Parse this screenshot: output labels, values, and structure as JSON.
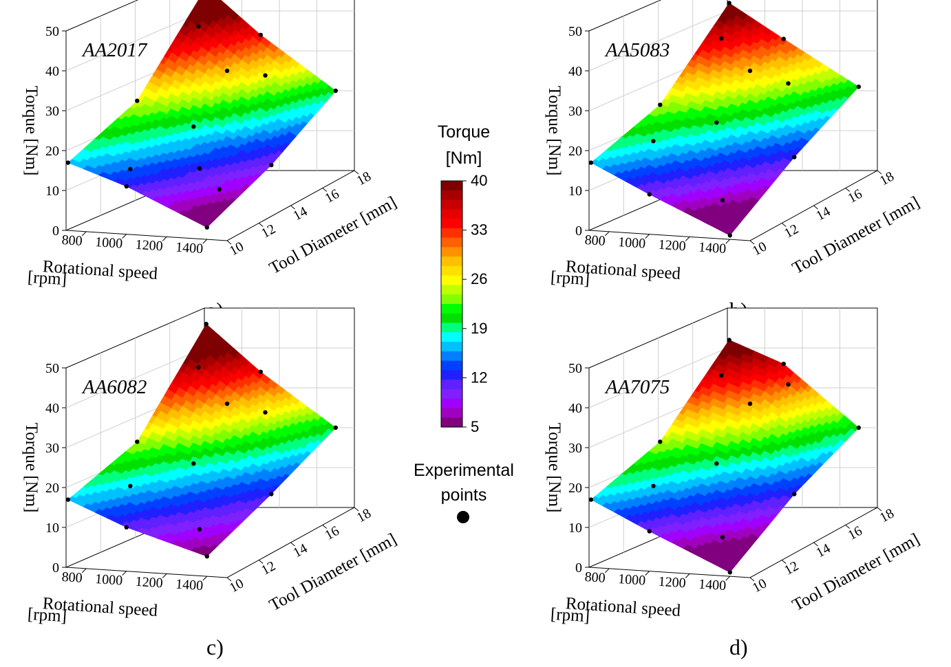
{
  "chart_data": [
    {
      "type": "surface3d",
      "panel": "a)",
      "title": "AA2017",
      "xlabel": [
        "Rotational speed",
        "[rpm]"
      ],
      "ylabel": "Tool Diameter [mm]",
      "zlabel": "Torque [Nm]",
      "xticks": [
        "800",
        "1000",
        "1200",
        "1400"
      ],
      "yticks": [
        "10",
        "12",
        "14",
        "16",
        "18"
      ],
      "zticks": [
        "0",
        "10",
        "20",
        "30",
        "40",
        "50"
      ],
      "xlim": [
        700,
        1500
      ],
      "ylim": [
        10,
        18
      ],
      "zlim": [
        0,
        50
      ],
      "rpm": [
        710,
        1000,
        1400
      ],
      "diameter": [
        10,
        14,
        18
      ],
      "torque": [
        [
          17,
          25,
          46
        ],
        [
          12,
          19,
          34
        ],
        [
          3,
          10,
          20
        ]
      ],
      "points": [
        [
          710,
          10,
          17
        ],
        [
          710,
          14,
          25
        ],
        [
          710,
          18,
          46
        ],
        [
          1000,
          10,
          12
        ],
        [
          1000,
          14,
          19
        ],
        [
          1000,
          18,
          34
        ],
        [
          1400,
          10,
          3
        ],
        [
          1400,
          14,
          10
        ],
        [
          1400,
          18,
          20
        ],
        [
          850,
          12,
          12
        ],
        [
          850,
          16,
          40
        ],
        [
          1200,
          16,
          28
        ],
        [
          1200,
          12,
          13
        ],
        [
          1000,
          16,
          29
        ],
        [
          1300,
          12,
          8
        ]
      ]
    },
    {
      "type": "surface3d",
      "panel": "b)",
      "title": "AA5083",
      "xlabel": [
        "Rotational speed",
        "[rpm]"
      ],
      "ylabel": "Tool Diameter [mm]",
      "zlabel": "Torque [Nm]",
      "xticks": [
        "800",
        "1000",
        "1200",
        "1400"
      ],
      "yticks": [
        "10",
        "12",
        "14",
        "16",
        "18"
      ],
      "zticks": [
        "0",
        "10",
        "20",
        "30",
        "40",
        "50"
      ],
      "xlim": [
        700,
        1500
      ],
      "ylim": [
        10,
        18
      ],
      "zlim": [
        0,
        50
      ],
      "rpm": [
        710,
        1000,
        1400
      ],
      "diameter": [
        10,
        14,
        18
      ],
      "torque": [
        [
          17,
          24,
          42
        ],
        [
          10,
          20,
          33
        ],
        [
          1,
          12,
          21
        ]
      ],
      "points": [
        [
          710,
          10,
          17
        ],
        [
          710,
          14,
          24
        ],
        [
          710,
          18,
          42
        ],
        [
          1000,
          10,
          10
        ],
        [
          1000,
          14,
          20
        ],
        [
          1000,
          18,
          33
        ],
        [
          1400,
          10,
          1
        ],
        [
          1400,
          14,
          12
        ],
        [
          1400,
          18,
          21
        ],
        [
          850,
          12,
          19
        ],
        [
          850,
          16,
          37
        ],
        [
          1200,
          16,
          26
        ],
        [
          1200,
          12,
          5
        ],
        [
          1000,
          16,
          29
        ]
      ]
    },
    {
      "type": "surface3d",
      "panel": "c)",
      "title": "AA6082",
      "xlabel": [
        "Rotational speed",
        "[rpm]"
      ],
      "ylabel": "Tool Diameter [mm]",
      "zlabel": "Torque [Nm]",
      "xticks": [
        "800",
        "1000",
        "1200",
        "1400"
      ],
      "yticks": [
        "10",
        "12",
        "14",
        "16",
        "18"
      ],
      "zticks": [
        "0",
        "10",
        "20",
        "30",
        "40",
        "50"
      ],
      "xlim": [
        700,
        1500
      ],
      "ylim": [
        10,
        18
      ],
      "zlim": [
        0,
        50
      ],
      "rpm": [
        710,
        1000,
        1400
      ],
      "diameter": [
        10,
        14,
        18
      ],
      "torque": [
        [
          17,
          24,
          46
        ],
        [
          11,
          19,
          34
        ],
        [
          5,
          12,
          20
        ]
      ],
      "points": [
        [
          710,
          10,
          17
        ],
        [
          710,
          14,
          24
        ],
        [
          710,
          18,
          46
        ],
        [
          1000,
          10,
          11
        ],
        [
          1000,
          14,
          19
        ],
        [
          1000,
          18,
          34
        ],
        [
          1400,
          10,
          5
        ],
        [
          1400,
          14,
          12
        ],
        [
          1400,
          18,
          20
        ],
        [
          850,
          12,
          17
        ],
        [
          850,
          16,
          39
        ],
        [
          1200,
          16,
          28
        ],
        [
          1200,
          12,
          7
        ],
        [
          1000,
          16,
          30
        ]
      ]
    },
    {
      "type": "surface3d",
      "panel": "d)",
      "title": "AA7075",
      "xlabel": [
        "Rotational speed",
        "[rpm]"
      ],
      "ylabel": "Tool Diameter [mm]",
      "zlabel": "Torque [Nm]",
      "xticks": [
        "800",
        "1000",
        "1200",
        "1400"
      ],
      "yticks": [
        "10",
        "12",
        "14",
        "16",
        "18"
      ],
      "zticks": [
        "0",
        "10",
        "20",
        "30",
        "40",
        "50"
      ],
      "xlim": [
        700,
        1500
      ],
      "ylim": [
        10,
        18
      ],
      "zlim": [
        0,
        50
      ],
      "rpm": [
        710,
        1000,
        1400
      ],
      "diameter": [
        10,
        14,
        18
      ],
      "torque": [
        [
          17,
          24,
          42
        ],
        [
          10,
          19,
          36
        ],
        [
          1,
          12,
          20
        ]
      ],
      "points": [
        [
          710,
          10,
          17
        ],
        [
          710,
          14,
          24
        ],
        [
          710,
          18,
          42
        ],
        [
          1000,
          10,
          10
        ],
        [
          1000,
          14,
          19
        ],
        [
          1000,
          18,
          36
        ],
        [
          1400,
          10,
          1
        ],
        [
          1400,
          14,
          12
        ],
        [
          1400,
          18,
          20
        ],
        [
          850,
          12,
          17
        ],
        [
          850,
          16,
          37
        ],
        [
          1200,
          16,
          35
        ],
        [
          1200,
          12,
          5
        ],
        [
          1000,
          16,
          30
        ]
      ]
    }
  ],
  "colorbar": {
    "title": [
      "Torque",
      "[Nm]"
    ],
    "min": 5,
    "max": 40,
    "ticks": [
      "40",
      "33",
      "26",
      "19",
      "12",
      "5"
    ],
    "levels": [
      "#7f0000",
      "#a60000",
      "#c80000",
      "#e60000",
      "#ff0000",
      "#ff3000",
      "#ff6000",
      "#ff9000",
      "#ffc000",
      "#ffe000",
      "#ffff00",
      "#c0ff00",
      "#80ff00",
      "#00ff00",
      "#00e000",
      "#00ff80",
      "#00ffff",
      "#00c0ff",
      "#0080ff",
      "#0040ff",
      "#2020ff",
      "#6020ff",
      "#8020ff",
      "#a000ff",
      "#a000c0",
      "#800080"
    ]
  },
  "legend": {
    "label": [
      "Experimental",
      "points"
    ]
  }
}
